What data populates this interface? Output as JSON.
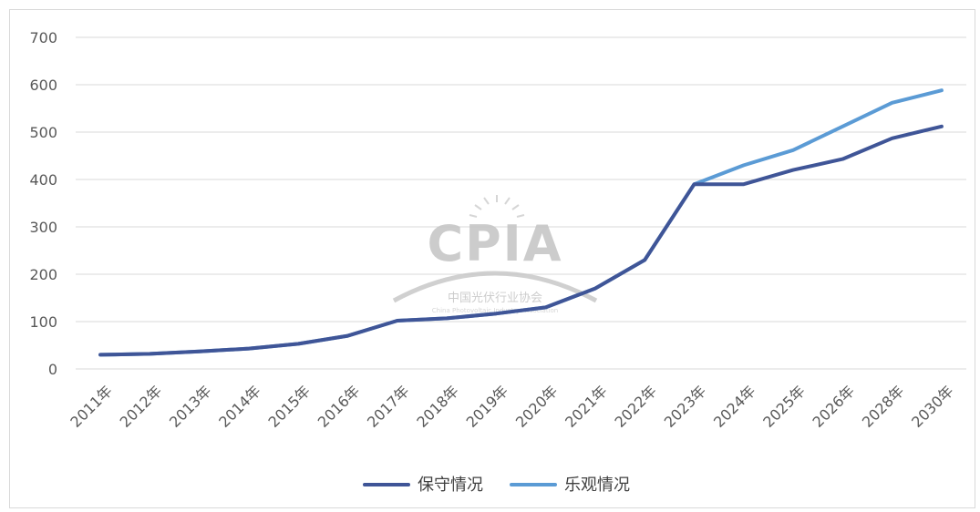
{
  "chart_data": {
    "type": "line",
    "categories": [
      "2011年",
      "2012年",
      "2013年",
      "2014年",
      "2015年",
      "2016年",
      "2017年",
      "2018年",
      "2019年",
      "2020年",
      "2021年",
      "2022年",
      "2023年",
      "2024年",
      "2025年",
      "2026年",
      "2028年",
      "2030年"
    ],
    "series": [
      {
        "name": "保守情况",
        "color": "#3f5597",
        "values": [
          30,
          32,
          37,
          43,
          53,
          70,
          102,
          107,
          117,
          130,
          170,
          230,
          390,
          390,
          420,
          443,
          487,
          512
        ]
      },
      {
        "name": "乐观情况",
        "color": "#5b9bd5",
        "values": [
          30,
          32,
          37,
          43,
          53,
          70,
          102,
          107,
          117,
          130,
          170,
          230,
          390,
          430,
          462,
          512,
          562,
          588
        ]
      }
    ],
    "yticks": [
      0,
      100,
      200,
      300,
      400,
      500,
      600,
      700
    ],
    "ylim": [
      0,
      700
    ],
    "grid": true,
    "legend_position": "bottom-center"
  },
  "watermark": {
    "logo_text": "CPIA",
    "cn_text": "中国光伏行业协会",
    "en_text": "China Photovoltaic Industry Association"
  }
}
